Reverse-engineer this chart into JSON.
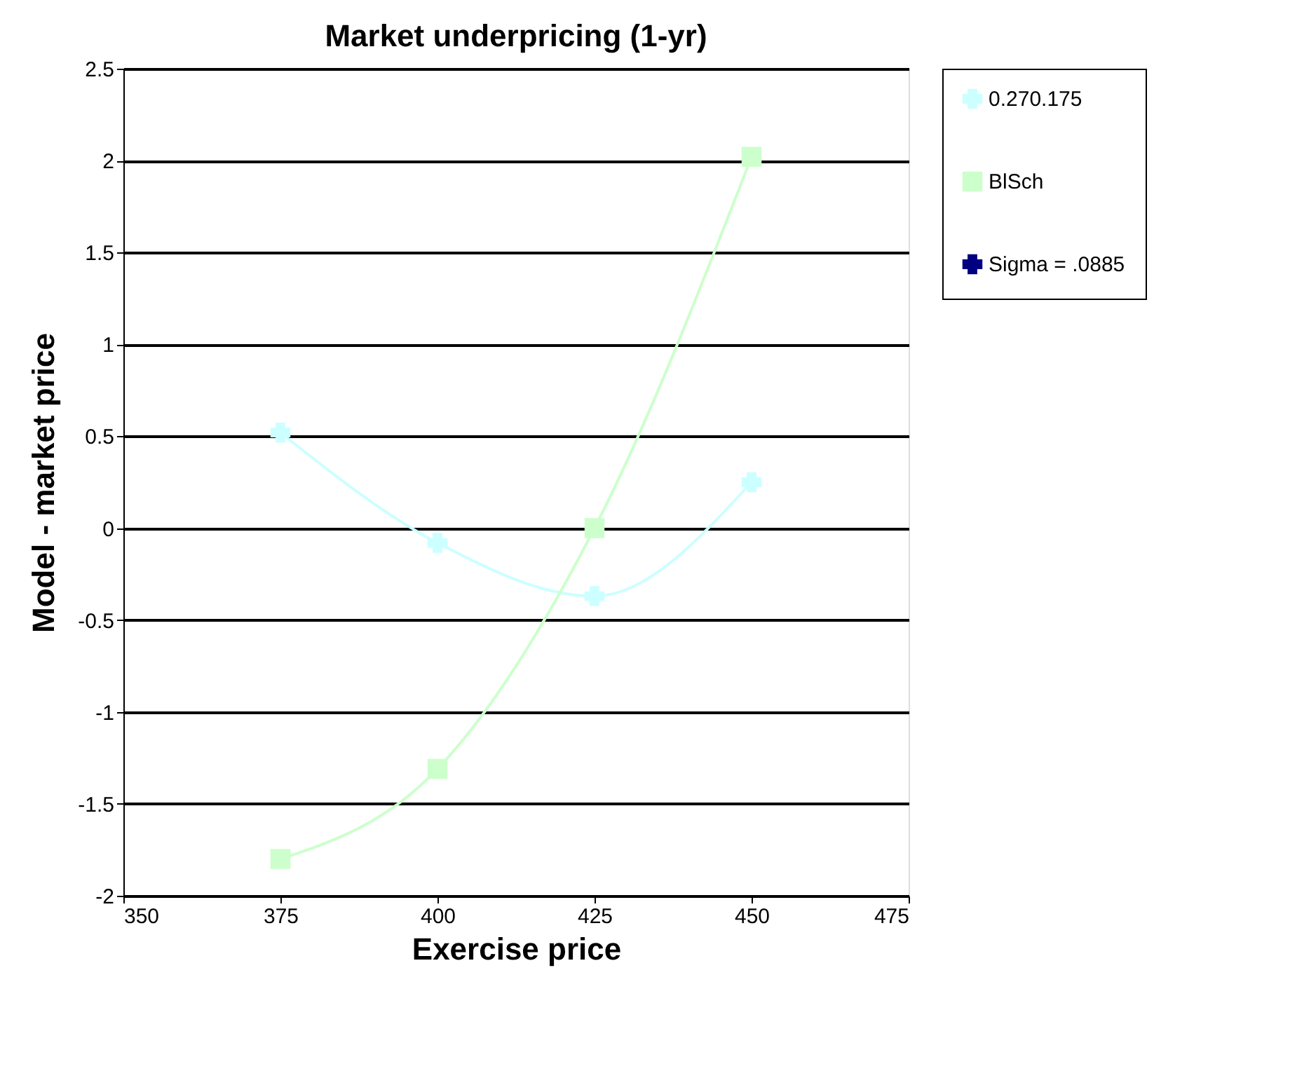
{
  "chart_data": {
    "type": "line",
    "title": "Market underpricing    (1-yr)",
    "xlabel": "Exercise price",
    "ylabel": "Model - market price",
    "x": [
      375,
      400,
      425,
      450
    ],
    "series": [
      {
        "name": "0.270.175",
        "color": "#ccffff",
        "marker": "cross",
        "values": [
          0.52,
          -0.08,
          -0.37,
          0.25
        ]
      },
      {
        "name": "BlSch",
        "color": "#ccffcc",
        "marker": "square",
        "values": [
          -1.8,
          -1.31,
          0.0,
          2.02
        ]
      },
      {
        "name": "Sigma = .0885",
        "color": "#000080",
        "marker": "cross",
        "values": [
          null,
          null,
          null,
          null
        ]
      }
    ],
    "xlim": [
      350,
      475
    ],
    "xticks": [
      350,
      375,
      400,
      425,
      450,
      475
    ],
    "ylim": [
      -2,
      2.5
    ],
    "yticks": [
      -2,
      -1.5,
      -1,
      -0.5,
      0,
      0.5,
      1,
      1.5,
      2,
      2.5
    ],
    "grid": "y",
    "legend": "top right"
  }
}
